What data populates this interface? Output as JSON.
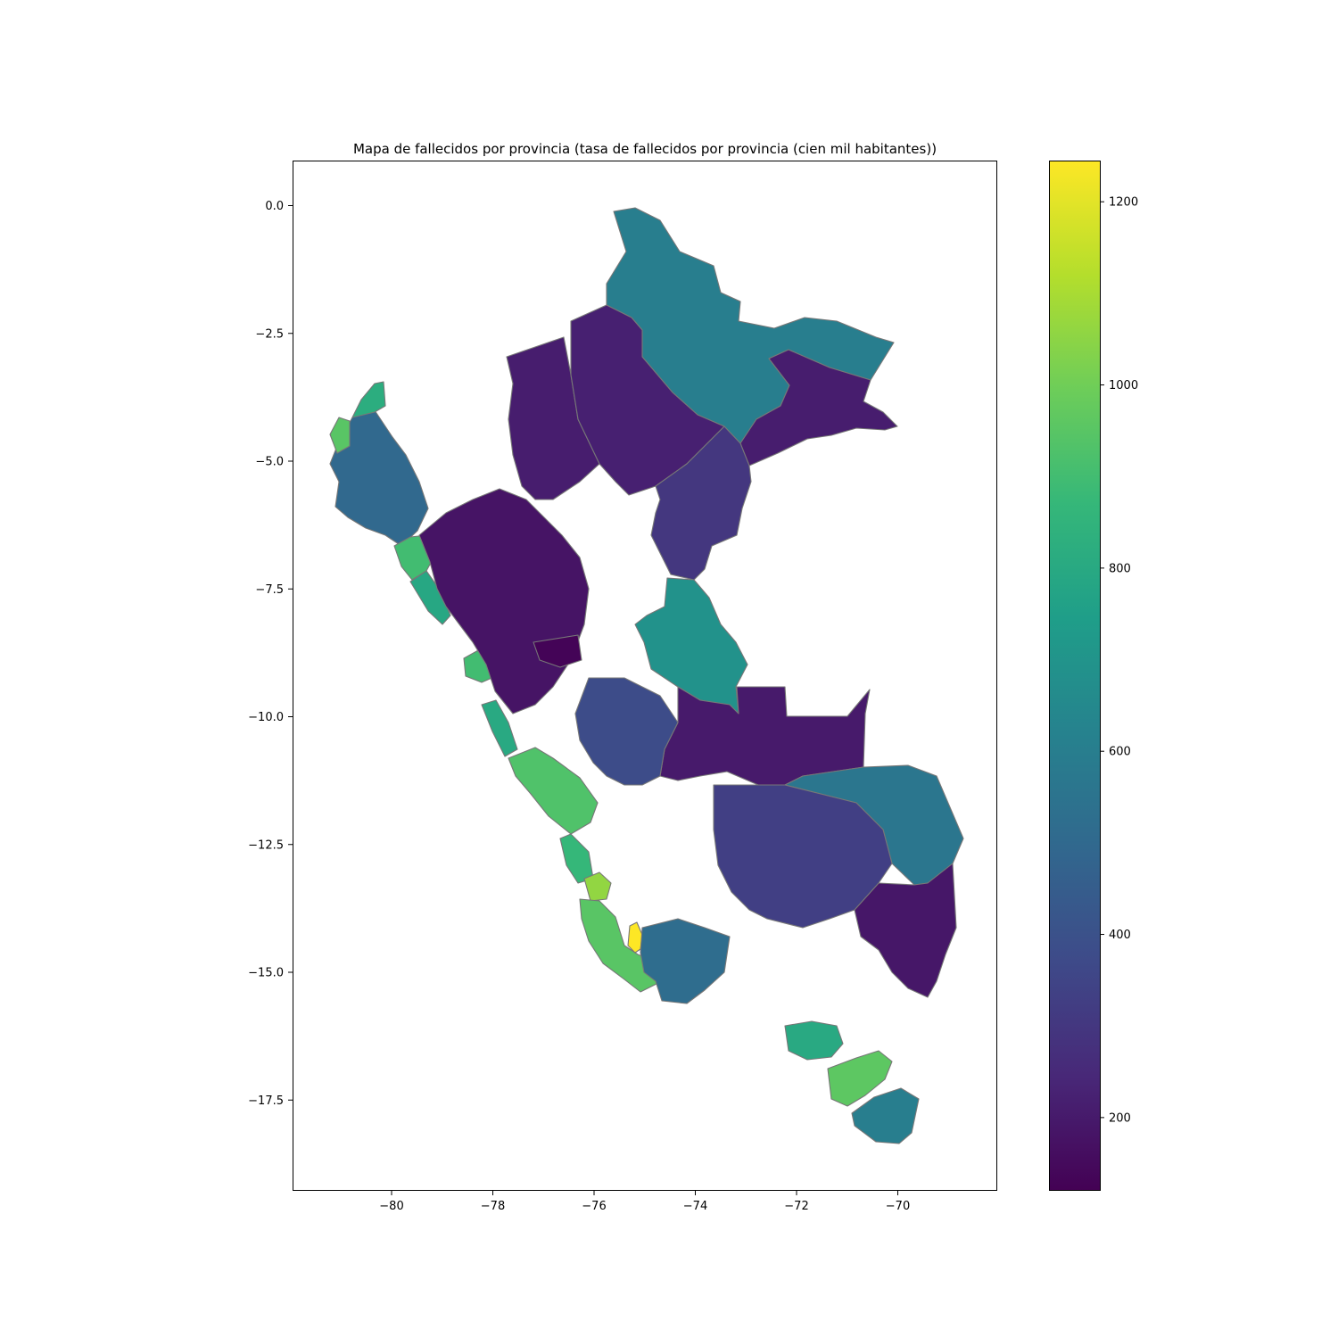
{
  "chart_data": {
    "type": "choropleth",
    "title": "Mapa de fallecidos por provincia (tasa de fallecidos por provincia (cien mil habitantes))",
    "x_ticks": [
      "−80",
      "−78",
      "−76",
      "−74",
      "−72",
      "−70"
    ],
    "y_ticks": [
      "0.0",
      "−2.5",
      "−5.0",
      "−7.5",
      "−10.0",
      "−12.5",
      "−15.0",
      "−17.5"
    ],
    "colorbar": {
      "colormap": "viridis",
      "range": [
        120,
        1245
      ],
      "ticks": [
        "200",
        "400",
        "600",
        "800",
        "1000",
        "1200"
      ]
    },
    "edge_color": "#777777",
    "regions": [
      {
        "name": "northeast-region",
        "value": 600
      },
      {
        "name": "north-central-region-a",
        "value": 210
      },
      {
        "name": "north-central-region-b",
        "value": 220
      },
      {
        "name": "east-of-north-region",
        "value": 210
      },
      {
        "name": "central-northeast-region",
        "value": 300
      },
      {
        "name": "ucayali-north-region",
        "value": 690
      },
      {
        "name": "central-east-region",
        "value": 200
      },
      {
        "name": "madre-de-dios-region",
        "value": 560
      },
      {
        "name": "southeast-region",
        "value": 190
      },
      {
        "name": "central-south-region",
        "value": 330
      },
      {
        "name": "northwest-coast-region",
        "value": 500
      },
      {
        "name": "tumbes-region",
        "value": 820
      },
      {
        "name": "piura-coast-region",
        "value": 950
      },
      {
        "name": "lambayeque-region",
        "value": 900
      },
      {
        "name": "la-libertad-coast-region",
        "value": 790
      },
      {
        "name": "ancash-coast-region",
        "value": 900
      },
      {
        "name": "lima-north-coast-region",
        "value": 800
      },
      {
        "name": "lima-region",
        "value": 930
      },
      {
        "name": "ica-north-region",
        "value": 870
      },
      {
        "name": "ica-region",
        "value": 1060
      },
      {
        "name": "nazca-region",
        "value": 1245
      },
      {
        "name": "arequipa-coast-region",
        "value": 950
      },
      {
        "name": "arequipa-region",
        "value": 520
      },
      {
        "name": "moquegua-region",
        "value": 800
      },
      {
        "name": "tacna-region",
        "value": 960
      },
      {
        "name": "puno-south-region",
        "value": 600
      },
      {
        "name": "highland-core-region",
        "value": 180
      },
      {
        "name": "dark-pocket-region",
        "value": 130
      },
      {
        "name": "andes-south-region",
        "value": 380
      }
    ]
  }
}
